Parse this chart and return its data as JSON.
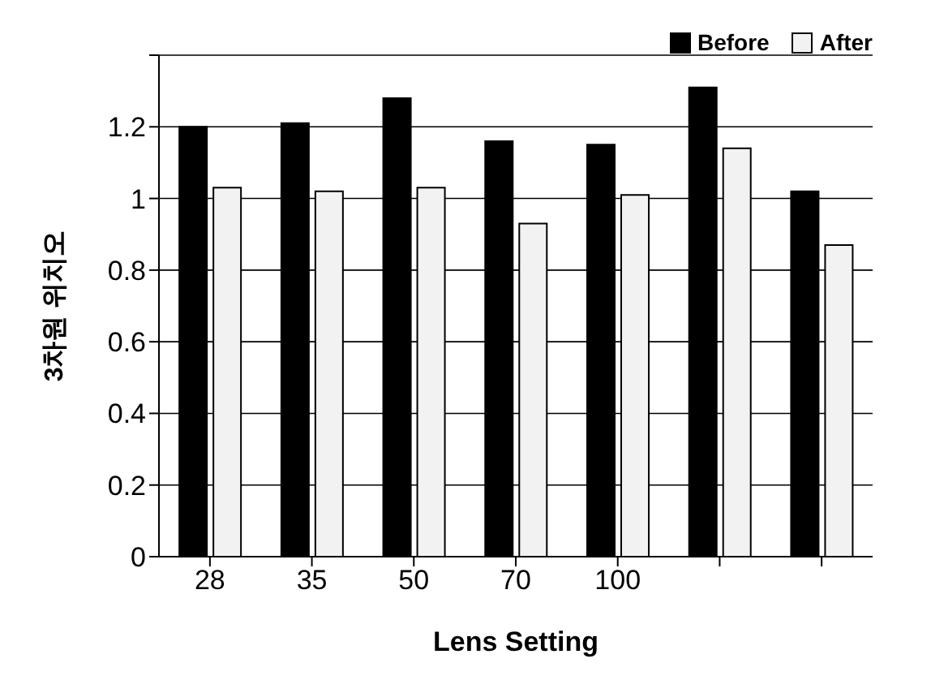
{
  "chart_data": {
    "type": "bar",
    "xlabel": "Lens Setting",
    "ylabel": "3차원 위치오",
    "categories": [
      "28",
      "35",
      "50",
      "70",
      "100",
      null,
      null
    ],
    "series": [
      {
        "name": "Before",
        "color": "#000000",
        "values": [
          1.2,
          1.21,
          1.28,
          1.16,
          1.15,
          1.31,
          1.02
        ]
      },
      {
        "name": "After",
        "color": "#f2f2f2",
        "values": [
          1.03,
          1.02,
          1.03,
          0.93,
          1.01,
          1.14,
          0.87
        ]
      }
    ],
    "ylim": [
      0,
      1.4
    ],
    "yticks": [
      0,
      0.2,
      0.4,
      0.6,
      0.8,
      1,
      1.2,
      {
        "value": 1.4,
        "label": null
      }
    ],
    "grid": "y",
    "legend": "top right"
  }
}
